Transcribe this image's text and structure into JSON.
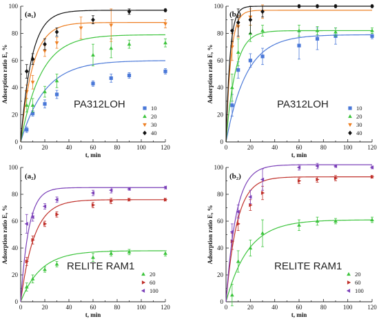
{
  "chart_data": [
    {
      "id": "a1",
      "type": "scatter",
      "panel_label": "(a₁)",
      "material": "PA312LOH",
      "xlabel": "t, min",
      "ylabel": "Adsorption ratio E, %",
      "xlim": [
        0,
        120
      ],
      "ylim": [
        0,
        100
      ],
      "xticks": [
        0,
        20,
        40,
        60,
        80,
        100,
        120
      ],
      "yticks": [
        0,
        20,
        40,
        60,
        80,
        100
      ],
      "legend_position": "bottom-right",
      "series": [
        {
          "name": "10",
          "color": "#4a78d8",
          "marker": "square",
          "x": [
            5,
            10,
            20,
            30,
            60,
            75,
            90,
            120
          ],
          "y": [
            9,
            21,
            28,
            35,
            43,
            47,
            49,
            52
          ],
          "err": [
            2,
            2,
            3,
            3,
            2,
            3,
            2,
            2
          ],
          "fit": {
            "emax": 60,
            "k": 0.05
          }
        },
        {
          "name": "20",
          "color": "#3cc43c",
          "marker": "triangle-up",
          "x": [
            5,
            10,
            20,
            30,
            60,
            75,
            90,
            120
          ],
          "y": [
            27,
            27,
            37,
            45,
            64,
            69,
            72,
            73
          ],
          "err": [
            5,
            5,
            4,
            5,
            8,
            7,
            3,
            3
          ],
          "fit": {
            "emax": 79,
            "k": 0.06
          }
        },
        {
          "name": "30",
          "color": "#ee7f22",
          "marker": "triangle-down",
          "x": [
            5,
            10,
            20,
            30,
            50,
            75,
            120
          ],
          "y": [
            37,
            44,
            67,
            73,
            84,
            86,
            87
          ],
          "err": [
            5,
            5,
            4,
            4,
            8,
            12,
            3
          ],
          "fit": {
            "emax": 88,
            "k": 0.1
          }
        },
        {
          "name": "40",
          "color": "#111111",
          "marker": "diamond",
          "x": [
            5,
            10,
            20,
            30,
            60,
            90,
            120
          ],
          "y": [
            52,
            61,
            72,
            81,
            90,
            96,
            97
          ],
          "err": [
            5,
            4,
            4,
            3,
            3,
            2,
            1
          ],
          "fit": {
            "emax": 97,
            "k": 0.11
          }
        }
      ]
    },
    {
      "id": "b1",
      "type": "scatter",
      "panel_label": "(b₁)",
      "material": "PA312LOH",
      "xlabel": "t, min",
      "ylabel": "Adsorption ratio E, %",
      "xlim": [
        0,
        120
      ],
      "ylim": [
        0,
        100
      ],
      "xticks": [
        0,
        20,
        40,
        60,
        80,
        100,
        120
      ],
      "yticks": [
        0,
        20,
        40,
        60,
        80,
        100
      ],
      "legend_position": "bottom-right",
      "series": [
        {
          "name": "10",
          "color": "#4a78d8",
          "marker": "square",
          "x": [
            5,
            10,
            20,
            30,
            60,
            75,
            90,
            120
          ],
          "y": [
            27,
            53,
            60,
            63,
            71,
            76,
            78,
            78
          ],
          "err": [
            8,
            6,
            5,
            6,
            10,
            8,
            6,
            2
          ],
          "fit": {
            "emax": 79,
            "k": 0.06
          }
        },
        {
          "name": "20",
          "color": "#3cc43c",
          "marker": "triangle-up",
          "x": [
            5,
            10,
            20,
            30,
            60,
            75,
            90,
            120
          ],
          "y": [
            40,
            66,
            80,
            82,
            82,
            82,
            81,
            82
          ],
          "err": [
            10,
            10,
            6,
            4,
            4,
            3,
            3,
            2
          ],
          "fit": {
            "emax": 82,
            "k": 0.13
          }
        },
        {
          "name": "30",
          "color": "#ee7f22",
          "marker": "triangle-down",
          "x": [
            5,
            10,
            20,
            30
          ],
          "y": [
            70,
            85,
            92,
            96
          ],
          "err": [
            10,
            8,
            6,
            5
          ],
          "fit": {
            "emax": 97,
            "k": 0.25
          }
        },
        {
          "name": "40",
          "color": "#111111",
          "marker": "diamond",
          "x": [
            5,
            10,
            20,
            30,
            60,
            75,
            90,
            120
          ],
          "y": [
            82,
            88,
            90,
            96,
            100,
            100,
            100,
            100
          ],
          "err": [
            8,
            10,
            10,
            4,
            1,
            1,
            1,
            1
          ],
          "fit": {
            "emax": 100,
            "k": 0.3
          }
        }
      ]
    },
    {
      "id": "a2",
      "type": "scatter",
      "panel_label": "(a₂)",
      "material": "RELITE RAM1",
      "xlabel": "t, min",
      "ylabel": "Adsorption ratio E, %",
      "xlim": [
        0,
        120
      ],
      "ylim": [
        0,
        100
      ],
      "xticks": [
        0,
        20,
        40,
        60,
        80,
        100,
        120
      ],
      "yticks": [
        0,
        20,
        40,
        60,
        80,
        100
      ],
      "legend_position": "bottom-right",
      "series": [
        {
          "name": "20",
          "color": "#3cc43c",
          "marker": "triangle-up",
          "x": [
            5,
            10,
            20,
            30,
            60,
            75,
            90,
            120
          ],
          "y": [
            11,
            17,
            24,
            28,
            33,
            36,
            37,
            36
          ],
          "err": [
            3,
            3,
            2,
            2,
            3,
            2,
            2,
            2
          ],
          "fit": {
            "emax": 38,
            "k": 0.06
          }
        },
        {
          "name": "60",
          "color": "#c0302a",
          "marker": "triangle-right",
          "x": [
            5,
            10,
            20,
            30,
            60,
            75,
            90,
            120
          ],
          "y": [
            30,
            46,
            58,
            65,
            72,
            75,
            76,
            76
          ],
          "err": [
            3,
            3,
            2,
            2,
            2,
            2,
            1,
            1
          ],
          "fit": {
            "emax": 76,
            "k": 0.09
          }
        },
        {
          "name": "100",
          "color": "#7a3fb8",
          "marker": "triangle-left",
          "x": [
            5,
            10,
            20,
            30,
            60,
            75,
            90,
            120
          ],
          "y": [
            58,
            63,
            71,
            76,
            81,
            83,
            84,
            85
          ],
          "err": [
            7,
            3,
            2,
            2,
            2,
            2,
            1,
            1
          ],
          "fit": {
            "emax": 85,
            "k": 0.15
          }
        }
      ]
    },
    {
      "id": "b2",
      "type": "scatter",
      "panel_label": "(b₂)",
      "material": "RELITE RAM1",
      "xlabel": "t, min",
      "ylabel": "Adsorption ratio E, %",
      "xlim": [
        0,
        120
      ],
      "ylim": [
        0,
        100
      ],
      "xticks": [
        0,
        20,
        40,
        60,
        80,
        100,
        120
      ],
      "yticks": [
        0,
        20,
        40,
        60,
        80,
        100
      ],
      "legend_position": "bottom-right",
      "series": [
        {
          "name": "20",
          "color": "#3cc43c",
          "marker": "triangle-up",
          "x": [
            5,
            10,
            20,
            30,
            60,
            75,
            90,
            120
          ],
          "y": [
            5,
            30,
            40,
            51,
            57,
            60,
            60,
            61
          ],
          "err": [
            8,
            8,
            6,
            10,
            4,
            3,
            2,
            2
          ],
          "fit": {
            "emax": 61,
            "k": 0.055
          }
        },
        {
          "name": "60",
          "color": "#c0302a",
          "marker": "triangle-right",
          "x": [
            5,
            10,
            20,
            30,
            60,
            75,
            90,
            120
          ],
          "y": [
            45,
            58,
            72,
            81,
            90,
            91,
            92,
            93
          ],
          "err": [
            6,
            5,
            4,
            5,
            2,
            2,
            2,
            1
          ],
          "fit": {
            "emax": 93,
            "k": 0.11
          }
        },
        {
          "name": "100",
          "color": "#7a3fb8",
          "marker": "triangle-left",
          "x": [
            5,
            10,
            20,
            30,
            60,
            75,
            90,
            120
          ],
          "y": [
            52,
            67,
            78,
            91,
            100,
            101,
            101,
            100
          ],
          "err": [
            6,
            5,
            5,
            8,
            2,
            2,
            1,
            1
          ],
          "fit": {
            "emax": 102,
            "k": 0.12
          }
        }
      ]
    }
  ]
}
